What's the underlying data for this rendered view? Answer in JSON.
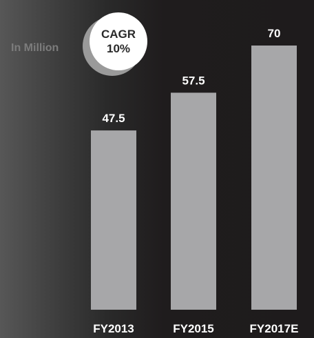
{
  "unit_label": "In Million",
  "cagr": {
    "label": "CAGR",
    "value": "10%"
  },
  "colors": {
    "bar": "#a7a7a9",
    "text": "#ffffff",
    "muted": "#7c7c7c"
  },
  "chart_data": {
    "type": "bar",
    "categories": [
      "FY2013",
      "FY2015",
      "FY2017E"
    ],
    "values": [
      47.5,
      57.5,
      70
    ],
    "value_labels": [
      "47.5",
      "57.5",
      "70"
    ],
    "ylim": [
      0,
      70
    ],
    "grid": false,
    "legend": "none"
  }
}
